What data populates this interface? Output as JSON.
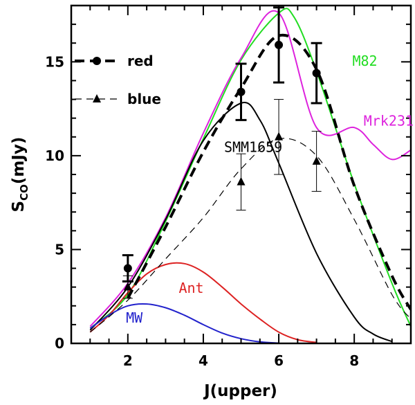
{
  "chart_data": {
    "type": "line",
    "xlabel": "J(upper)",
    "ylabel_main": "S",
    "ylabel_sub": "CO",
    "ylabel_unit": "(mJy)",
    "xlim": [
      0.5,
      9.5
    ],
    "ylim": [
      0,
      18
    ],
    "x_ticks": [
      2,
      4,
      6,
      8
    ],
    "y_ticks": [
      0,
      5,
      10,
      15
    ],
    "x_minor_step": 0.5,
    "y_minor_step": 1,
    "legend": [
      {
        "label": "red",
        "style": "thick-dashed-circle"
      },
      {
        "label": "blue",
        "style": "thin-dashed-triangle"
      }
    ],
    "series": [
      {
        "name": "red",
        "color": "#000000",
        "line": [
          [
            2,
            2.4
          ],
          [
            3,
            6.2
          ],
          [
            4,
            10.2
          ],
          [
            5,
            13.6
          ],
          [
            6,
            16.4
          ],
          [
            7,
            14.6
          ],
          [
            8,
            8.4
          ],
          [
            9,
            3.6
          ],
          [
            9.5,
            1.8
          ]
        ],
        "points": [
          {
            "x": 2,
            "y": 4.0,
            "err": 0.7
          },
          {
            "x": 5,
            "y": 13.4,
            "err": 1.5
          },
          {
            "x": 6,
            "y": 15.9,
            "err": 2.0
          },
          {
            "x": 7,
            "y": 14.4,
            "err": 1.6
          }
        ]
      },
      {
        "name": "blue",
        "color": "#000000",
        "line": [
          [
            1,
            0.6
          ],
          [
            2,
            2.3
          ],
          [
            3,
            4.5
          ],
          [
            4,
            6.7
          ],
          [
            5,
            9.3
          ],
          [
            6,
            10.9
          ],
          [
            7,
            10.0
          ],
          [
            8,
            6.6
          ],
          [
            9,
            2.6
          ],
          [
            9.5,
            1.3
          ]
        ],
        "points": [
          {
            "x": 2,
            "y": 3.0,
            "err": 0.6
          },
          {
            "x": 5,
            "y": 8.6,
            "err": 1.5
          },
          {
            "x": 6,
            "y": 11.0,
            "err": 2.0
          },
          {
            "x": 7,
            "y": 9.7,
            "err": 1.6
          }
        ]
      }
    ],
    "models": [
      {
        "name": "M82",
        "color": "#22dd22",
        "label_at": [
          7.95,
          14.8
        ],
        "line": [
          [
            1,
            0.8
          ],
          [
            2,
            2.6
          ],
          [
            3,
            6.5
          ],
          [
            4,
            10.9
          ],
          [
            5,
            15.1
          ],
          [
            6,
            17.6
          ],
          [
            6.4,
            17.4
          ],
          [
            7,
            14.5
          ],
          [
            8,
            8.5
          ],
          [
            9,
            3.2
          ],
          [
            9.5,
            0.9
          ]
        ]
      },
      {
        "name": "Mrk231",
        "color": "#dd22dd",
        "label_at": [
          8.25,
          11.6
        ],
        "line": [
          [
            1,
            0.9
          ],
          [
            2,
            3.2
          ],
          [
            3,
            6.7
          ],
          [
            4,
            11.2
          ],
          [
            5,
            15.2
          ],
          [
            6,
            17.6
          ],
          [
            7,
            11.5
          ],
          [
            8,
            11.5
          ],
          [
            8.5,
            10.6
          ],
          [
            9,
            9.8
          ],
          [
            9.5,
            10.3
          ]
        ]
      },
      {
        "name": "SMM1659",
        "color": "#000000",
        "label_at": [
          4.55,
          10.2
        ],
        "line": [
          [
            1,
            0.7
          ],
          [
            2,
            3.0
          ],
          [
            3,
            6.6
          ],
          [
            4,
            10.8
          ],
          [
            5,
            12.8
          ],
          [
            5.5,
            11.9
          ],
          [
            6,
            9.6
          ],
          [
            7,
            4.8
          ],
          [
            8,
            1.4
          ],
          [
            8.5,
            0.5
          ],
          [
            9,
            0.1
          ]
        ]
      },
      {
        "name": "Ant",
        "color": "#dd2222",
        "label_at": [
          3.35,
          2.7
        ],
        "line": [
          [
            1,
            0.6
          ],
          [
            1.5,
            1.5
          ],
          [
            2,
            2.7
          ],
          [
            2.5,
            3.7
          ],
          [
            3,
            4.2
          ],
          [
            3.5,
            4.25
          ],
          [
            4,
            3.8
          ],
          [
            4.5,
            3.0
          ],
          [
            5,
            2.1
          ],
          [
            5.5,
            1.3
          ],
          [
            6,
            0.6
          ],
          [
            6.5,
            0.2
          ],
          [
            7,
            0.05
          ]
        ]
      },
      {
        "name": "MW",
        "color": "#2222cc",
        "label_at": [
          1.95,
          1.1
        ],
        "line": [
          [
            1,
            0.8
          ],
          [
            1.5,
            1.5
          ],
          [
            2,
            2.0
          ],
          [
            2.5,
            2.1
          ],
          [
            3,
            1.9
          ],
          [
            3.5,
            1.5
          ],
          [
            4,
            1.0
          ],
          [
            4.5,
            0.55
          ],
          [
            5,
            0.25
          ],
          [
            5.5,
            0.08
          ],
          [
            6,
            0.02
          ]
        ]
      }
    ]
  }
}
